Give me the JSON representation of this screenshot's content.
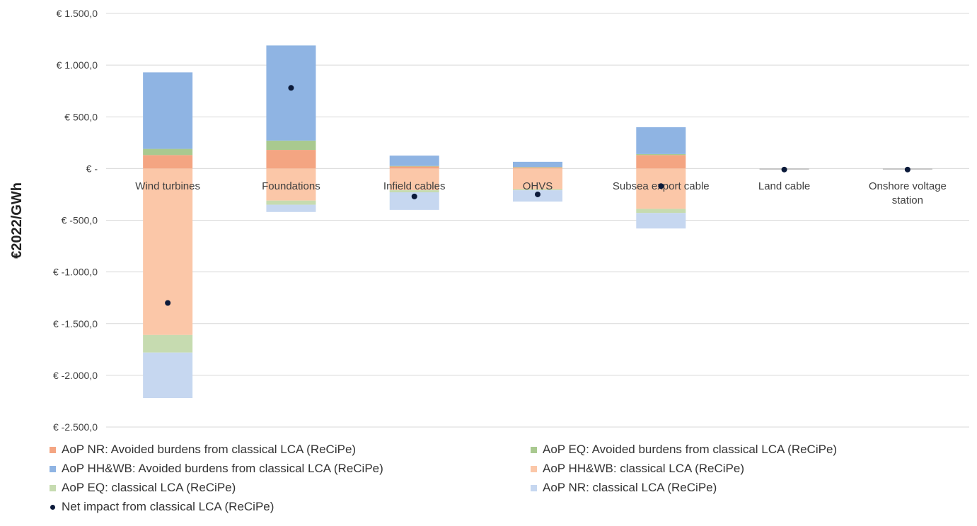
{
  "chart_data": {
    "type": "bar",
    "stacked": true,
    "ylabel": "€2022/GWh",
    "ylim": [
      -2500,
      1500
    ],
    "ytick_values": [
      1500,
      1000,
      500,
      0,
      -500,
      -1000,
      -1500,
      -2000,
      -2500
    ],
    "ytick_labels": [
      "€ 1.500,0",
      "€ 1.000,0",
      "€ 500,0",
      "€ -",
      "€ -500,0",
      "€ -1.000,0",
      "€ -1.500,0",
      "€ -2.000,0",
      "€ -2.500,0"
    ],
    "grid": true,
    "legend_position": "bottom",
    "categories": [
      "Wind turbines",
      "Foundations",
      "Infield cables",
      "OHVS",
      "Subsea export cable",
      "Land cable",
      "Onshore voltage station"
    ],
    "category_lines": [
      [
        "Wind turbines"
      ],
      [
        "Foundations"
      ],
      [
        "Infield cables"
      ],
      [
        "OHVS"
      ],
      [
        "Subsea export cable"
      ],
      [
        "Land cable"
      ],
      [
        "Onshore voltage",
        "station"
      ]
    ],
    "series": [
      {
        "name": "AoP NR: Avoided burdens from classical LCA (ReCiPe)",
        "color": "#f4a582",
        "values": [
          130,
          180,
          20,
          10,
          130,
          0,
          0
        ]
      },
      {
        "name": "AoP EQ: Avoided burdens from classical LCA (ReCiPe)",
        "color": "#a9c98f",
        "values": [
          60,
          90,
          5,
          5,
          10,
          0,
          0
        ]
      },
      {
        "name": "AoP HH&WB: Avoided burdens from classical LCA (ReCiPe)",
        "color": "#8fb4e3",
        "values": [
          740,
          920,
          100,
          50,
          260,
          0,
          0
        ]
      },
      {
        "name": "AoP HH&WB: classical LCA (ReCiPe)",
        "color": "#fbc7a8",
        "values": [
          -1610,
          -310,
          -210,
          -200,
          -390,
          0,
          0
        ]
      },
      {
        "name": "AoP EQ: classical LCA (ReCiPe)",
        "color": "#c6dbb0",
        "values": [
          -170,
          -40,
          -20,
          -10,
          -40,
          0,
          0
        ]
      },
      {
        "name": "AoP NR: classical LCA (ReCiPe)",
        "color": "#c6d7f0",
        "values": [
          -440,
          -70,
          -170,
          -110,
          -150,
          0,
          0
        ]
      }
    ],
    "net_impact": {
      "name": "Net impact from classical LCA (ReCiPe)",
      "color": "#0b1a3a",
      "values": [
        -1300,
        780,
        -270,
        -250,
        -170,
        -10,
        -10
      ]
    }
  }
}
